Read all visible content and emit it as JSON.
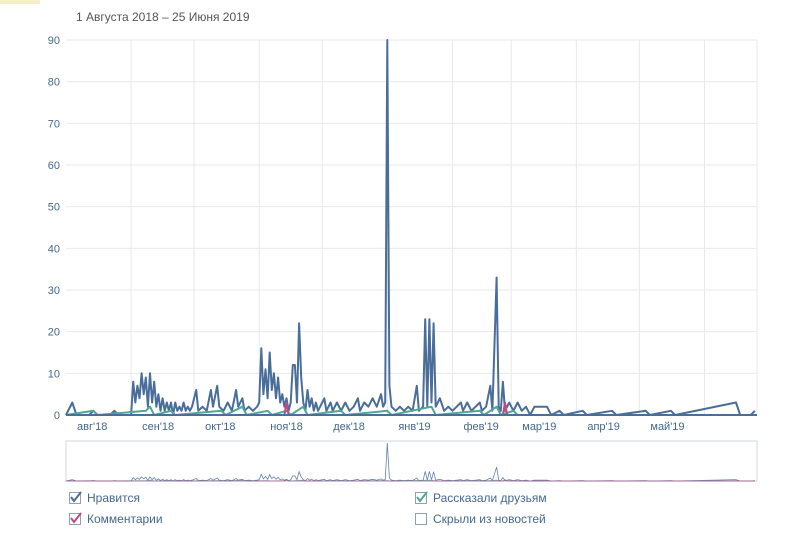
{
  "date_range": "1 Августа 2018 – 25 Июня 2019",
  "chart_data": {
    "type": "line",
    "title": "",
    "ylim": [
      0,
      90
    ],
    "yticks": [
      0,
      10,
      20,
      30,
      40,
      50,
      60,
      70,
      80,
      90
    ],
    "x_range": [
      "2018-08-01",
      "2019-06-25"
    ],
    "month_labels": [
      "авг'18",
      "сен'18",
      "окт'18",
      "ноя'18",
      "дек'18",
      "янв'19",
      "фев'19",
      "мар'19",
      "апр'19",
      "май'19"
    ],
    "grid": true,
    "legend_position": "bottom",
    "series": [
      {
        "name": "Нравится",
        "color": "#4a6e9a",
        "checked": true,
        "points": [
          [
            "2018-08-01",
            0
          ],
          [
            "2018-08-04",
            3
          ],
          [
            "2018-08-06",
            0
          ],
          [
            "2018-08-12",
            0
          ],
          [
            "2018-08-14",
            1
          ],
          [
            "2018-08-16",
            0
          ],
          [
            "2018-08-22",
            0
          ],
          [
            "2018-08-24",
            1
          ],
          [
            "2018-08-26",
            0
          ],
          [
            "2018-09-01",
            0
          ],
          [
            "2018-09-02",
            8
          ],
          [
            "2018-09-03",
            3
          ],
          [
            "2018-09-04",
            7
          ],
          [
            "2018-09-05",
            4
          ],
          [
            "2018-09-06",
            10
          ],
          [
            "2018-09-07",
            5
          ],
          [
            "2018-09-08",
            9
          ],
          [
            "2018-09-09",
            2
          ],
          [
            "2018-09-10",
            10
          ],
          [
            "2018-09-11",
            3
          ],
          [
            "2018-09-12",
            8
          ],
          [
            "2018-09-13",
            2
          ],
          [
            "2018-09-14",
            5
          ],
          [
            "2018-09-15",
            1
          ],
          [
            "2018-09-16",
            4
          ],
          [
            "2018-09-17",
            1
          ],
          [
            "2018-09-18",
            3
          ],
          [
            "2018-09-19",
            1
          ],
          [
            "2018-09-20",
            3
          ],
          [
            "2018-09-21",
            0
          ],
          [
            "2018-09-22",
            3
          ],
          [
            "2018-09-23",
            1
          ],
          [
            "2018-09-24",
            2
          ],
          [
            "2018-09-25",
            1
          ],
          [
            "2018-09-26",
            3
          ],
          [
            "2018-09-27",
            1
          ],
          [
            "2018-09-28",
            2
          ],
          [
            "2018-09-29",
            1
          ],
          [
            "2018-09-30",
            2
          ],
          [
            "2018-10-02",
            6
          ],
          [
            "2018-10-03",
            1
          ],
          [
            "2018-10-05",
            2
          ],
          [
            "2018-10-07",
            1
          ],
          [
            "2018-10-09",
            6
          ],
          [
            "2018-10-10",
            2
          ],
          [
            "2018-10-12",
            7
          ],
          [
            "2018-10-13",
            2
          ],
          [
            "2018-10-15",
            1
          ],
          [
            "2018-10-17",
            3
          ],
          [
            "2018-10-19",
            1
          ],
          [
            "2018-10-21",
            6
          ],
          [
            "2018-10-22",
            2
          ],
          [
            "2018-10-24",
            4
          ],
          [
            "2018-10-25",
            1
          ],
          [
            "2018-10-27",
            2
          ],
          [
            "2018-10-29",
            1
          ],
          [
            "2018-10-31",
            2
          ],
          [
            "2018-11-01",
            3
          ],
          [
            "2018-11-02",
            16
          ],
          [
            "2018-11-03",
            5
          ],
          [
            "2018-11-04",
            11
          ],
          [
            "2018-11-05",
            4
          ],
          [
            "2018-11-06",
            15
          ],
          [
            "2018-11-07",
            6
          ],
          [
            "2018-11-08",
            10
          ],
          [
            "2018-11-09",
            4
          ],
          [
            "2018-11-10",
            9
          ],
          [
            "2018-11-11",
            3
          ],
          [
            "2018-11-12",
            5
          ],
          [
            "2018-11-13",
            2
          ],
          [
            "2018-11-14",
            4
          ],
          [
            "2018-11-15",
            1
          ],
          [
            "2018-11-16",
            3
          ],
          [
            "2018-11-17",
            12
          ],
          [
            "2018-11-18",
            12
          ],
          [
            "2018-11-19",
            3
          ],
          [
            "2018-11-20",
            22
          ],
          [
            "2018-11-21",
            9
          ],
          [
            "2018-11-22",
            3
          ],
          [
            "2018-11-23",
            1
          ],
          [
            "2018-11-24",
            6
          ],
          [
            "2018-11-25",
            2
          ],
          [
            "2018-11-26",
            4
          ],
          [
            "2018-11-27",
            1
          ],
          [
            "2018-11-28",
            3
          ],
          [
            "2018-11-29",
            1
          ],
          [
            "2018-11-30",
            2
          ],
          [
            "2018-12-02",
            4
          ],
          [
            "2018-12-03",
            1
          ],
          [
            "2018-12-05",
            3
          ],
          [
            "2018-12-06",
            1
          ],
          [
            "2018-12-08",
            3
          ],
          [
            "2018-12-10",
            1
          ],
          [
            "2018-12-12",
            3
          ],
          [
            "2018-12-14",
            1
          ],
          [
            "2018-12-16",
            2
          ],
          [
            "2018-12-18",
            4
          ],
          [
            "2018-12-19",
            1
          ],
          [
            "2018-12-21",
            3
          ],
          [
            "2018-12-23",
            2
          ],
          [
            "2018-12-25",
            4
          ],
          [
            "2018-12-27",
            2
          ],
          [
            "2018-12-29",
            5
          ],
          [
            "2018-12-30",
            2
          ],
          [
            "2018-12-31",
            3
          ],
          [
            "2019-01-01",
            90
          ],
          [
            "2019-01-02",
            7
          ],
          [
            "2019-01-03",
            2
          ],
          [
            "2019-01-05",
            1
          ],
          [
            "2019-01-07",
            2
          ],
          [
            "2019-01-09",
            1
          ],
          [
            "2019-01-11",
            2
          ],
          [
            "2019-01-13",
            1
          ],
          [
            "2019-01-15",
            7
          ],
          [
            "2019-01-16",
            1
          ],
          [
            "2019-01-18",
            2
          ],
          [
            "2019-01-19",
            23
          ],
          [
            "2019-01-20",
            2
          ],
          [
            "2019-01-21",
            23
          ],
          [
            "2019-01-22",
            3
          ],
          [
            "2019-01-23",
            22
          ],
          [
            "2019-01-24",
            2
          ],
          [
            "2019-01-26",
            4
          ],
          [
            "2019-01-28",
            1
          ],
          [
            "2019-01-30",
            2
          ],
          [
            "2019-02-01",
            1
          ],
          [
            "2019-02-03",
            2
          ],
          [
            "2019-02-05",
            3
          ],
          [
            "2019-02-06",
            1
          ],
          [
            "2019-02-08",
            3
          ],
          [
            "2019-02-10",
            1
          ],
          [
            "2019-02-12",
            2
          ],
          [
            "2019-02-14",
            3
          ],
          [
            "2019-02-15",
            1
          ],
          [
            "2019-02-17",
            2
          ],
          [
            "2019-02-19",
            7
          ],
          [
            "2019-02-20",
            1
          ],
          [
            "2019-02-22",
            33
          ],
          [
            "2019-02-23",
            2
          ],
          [
            "2019-02-24",
            1
          ],
          [
            "2019-02-25",
            8
          ],
          [
            "2019-02-26",
            1
          ],
          [
            "2019-02-28",
            3
          ],
          [
            "2019-03-02",
            1
          ],
          [
            "2019-03-04",
            3
          ],
          [
            "2019-03-06",
            1
          ],
          [
            "2019-03-08",
            2
          ],
          [
            "2019-03-10",
            0
          ],
          [
            "2019-03-12",
            2
          ],
          [
            "2019-03-18",
            2
          ],
          [
            "2019-03-20",
            0
          ],
          [
            "2019-03-24",
            1
          ],
          [
            "2019-03-26",
            0
          ],
          [
            "2019-04-04",
            1
          ],
          [
            "2019-04-06",
            0
          ],
          [
            "2019-04-18",
            1
          ],
          [
            "2019-04-20",
            0
          ],
          [
            "2019-05-04",
            1
          ],
          [
            "2019-05-06",
            0
          ],
          [
            "2019-05-16",
            1
          ],
          [
            "2019-05-18",
            0
          ],
          [
            "2019-06-16",
            3
          ],
          [
            "2019-06-18",
            0
          ],
          [
            "2019-06-23",
            0
          ],
          [
            "2019-06-25",
            1
          ]
        ]
      },
      {
        "name": "Рассказали друзьям",
        "color": "#4fa69a",
        "checked": true,
        "points": [
          [
            "2018-08-01",
            0
          ],
          [
            "2018-08-14",
            1
          ],
          [
            "2018-08-16",
            0
          ],
          [
            "2018-09-08",
            1
          ],
          [
            "2018-09-10",
            2
          ],
          [
            "2018-09-12",
            0
          ],
          [
            "2018-09-20",
            1
          ],
          [
            "2018-09-22",
            0
          ],
          [
            "2018-10-14",
            1
          ],
          [
            "2018-10-16",
            0
          ],
          [
            "2018-10-24",
            2
          ],
          [
            "2018-10-26",
            0
          ],
          [
            "2018-11-05",
            1
          ],
          [
            "2018-11-07",
            0
          ],
          [
            "2018-11-14",
            1
          ],
          [
            "2018-11-16",
            0
          ],
          [
            "2018-11-22",
            2
          ],
          [
            "2018-11-24",
            0
          ],
          [
            "2018-12-10",
            1
          ],
          [
            "2018-12-12",
            0
          ],
          [
            "2019-01-01",
            1
          ],
          [
            "2019-01-03",
            0
          ],
          [
            "2019-01-22",
            2
          ],
          [
            "2019-01-24",
            0
          ],
          [
            "2019-02-14",
            1
          ],
          [
            "2019-02-16",
            0
          ],
          [
            "2019-02-22",
            2
          ],
          [
            "2019-02-24",
            0
          ],
          [
            "2019-03-02",
            1
          ],
          [
            "2019-03-04",
            0
          ],
          [
            "2019-06-25",
            0
          ]
        ]
      },
      {
        "name": "Комментарии",
        "color": "#c0498a",
        "checked": true,
        "points": [
          [
            "2018-08-01",
            0
          ],
          [
            "2018-11-13",
            0
          ],
          [
            "2018-11-14",
            3
          ],
          [
            "2018-11-15",
            0
          ],
          [
            "2019-02-25",
            0
          ],
          [
            "2019-02-26",
            3
          ],
          [
            "2019-02-27",
            0
          ],
          [
            "2019-06-25",
            0
          ]
        ]
      },
      {
        "name": "Скрыли из новостей",
        "color": "#8fa1b3",
        "checked": false,
        "points": []
      }
    ]
  }
}
